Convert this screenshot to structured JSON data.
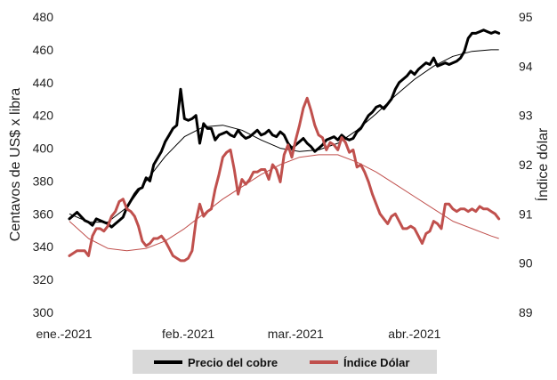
{
  "chart_data": {
    "type": "line",
    "title": "",
    "xlabel": "",
    "ylabel": "Centavos de US$ x libra",
    "y2label": "Índice dólar",
    "ylim": [
      300,
      480
    ],
    "y2lim": [
      89,
      95
    ],
    "x_tick_labels": [
      "ene.-2021",
      "feb.-2021",
      "mar.-2021",
      "abr.-2021"
    ],
    "x_tick_days": [
      0,
      31,
      59,
      90
    ],
    "x_range_days": [
      0,
      113
    ],
    "y_ticks": [
      300,
      320,
      340,
      360,
      380,
      400,
      420,
      440,
      460,
      480
    ],
    "y2_ticks": [
      89,
      90,
      91,
      92,
      93,
      94,
      95
    ],
    "grid": false,
    "legend_position": "bottom",
    "colors": {
      "copper": "#000000",
      "dollar": "#c0504d",
      "legend_bg": "#d9d9d9"
    },
    "series": [
      {
        "name": "Precio del cobre",
        "axis": "left",
        "color": "#000000",
        "x": [
          0,
          2,
          4,
          5,
          6,
          7,
          8,
          9,
          10,
          11,
          12,
          13,
          14,
          15,
          16,
          17,
          18,
          19,
          20,
          21,
          22,
          23,
          24,
          25,
          26,
          27,
          28,
          29,
          30,
          31,
          32,
          33,
          34,
          35,
          36,
          37,
          38,
          39,
          40,
          41,
          42,
          43,
          44,
          45,
          46,
          47,
          48,
          49,
          50,
          51,
          52,
          53,
          54,
          55,
          56,
          57,
          58,
          59,
          60,
          61,
          62,
          63,
          64,
          65,
          66,
          67,
          68,
          69,
          70,
          71,
          72,
          73,
          74,
          75,
          76,
          77,
          78,
          79,
          80,
          81,
          82,
          83,
          84,
          85,
          86,
          87,
          88,
          89,
          90,
          91,
          92,
          93,
          94,
          95,
          96,
          97,
          98,
          99,
          100,
          101,
          102,
          103,
          104,
          105,
          106,
          107,
          108,
          109,
          110,
          111,
          112
        ],
        "values": [
          357,
          361,
          356,
          355,
          353,
          357,
          356,
          355,
          354,
          352,
          354,
          356,
          358,
          364,
          368,
          372,
          375,
          376,
          382,
          380,
          390,
          394,
          398,
          404,
          408,
          412,
          414,
          436,
          418,
          417,
          418,
          420,
          403,
          415,
          412,
          412,
          405,
          408,
          409,
          410,
          408,
          407,
          411,
          408,
          406,
          407,
          409,
          411,
          408,
          409,
          411,
          408,
          407,
          410,
          408,
          403,
          400,
          402,
          404,
          406,
          403,
          401,
          398,
          400,
          402,
          405,
          406,
          407,
          405,
          408,
          406,
          405,
          406,
          410,
          412,
          416,
          420,
          422,
          425,
          426,
          424,
          427,
          430,
          436,
          440,
          442,
          444,
          447,
          445,
          448,
          450,
          452,
          451,
          455,
          450,
          451,
          452,
          451,
          452,
          453,
          455,
          459,
          467,
          470,
          470,
          471,
          472,
          471,
          470,
          471,
          470
        ]
      },
      {
        "name": "Índice Dólar",
        "axis": "right",
        "color": "#c0504d",
        "x": [
          0,
          2,
          4,
          5,
          6,
          7,
          8,
          9,
          10,
          11,
          12,
          13,
          14,
          15,
          16,
          17,
          18,
          19,
          20,
          21,
          22,
          23,
          24,
          25,
          26,
          27,
          28,
          29,
          30,
          31,
          32,
          33,
          34,
          35,
          36,
          37,
          38,
          39,
          40,
          41,
          42,
          43,
          44,
          45,
          46,
          47,
          48,
          49,
          50,
          51,
          52,
          53,
          54,
          55,
          56,
          57,
          58,
          59,
          60,
          61,
          62,
          63,
          64,
          65,
          66,
          67,
          68,
          69,
          70,
          71,
          72,
          73,
          74,
          75,
          76,
          77,
          78,
          79,
          80,
          81,
          82,
          83,
          84,
          85,
          86,
          87,
          88,
          89,
          90,
          91,
          92,
          93,
          94,
          95,
          96,
          97,
          98,
          99,
          100,
          101,
          102,
          103,
          104,
          105,
          106,
          107,
          108,
          109,
          110,
          111,
          112
        ],
        "values": [
          90.15,
          90.25,
          90.25,
          90.15,
          90.55,
          90.7,
          90.7,
          90.65,
          90.75,
          90.95,
          91.05,
          91.25,
          91.3,
          91.1,
          91.05,
          90.95,
          90.75,
          90.45,
          90.35,
          90.4,
          90.5,
          90.5,
          90.55,
          90.45,
          90.3,
          90.15,
          90.1,
          90.05,
          90.05,
          90.1,
          90.25,
          90.85,
          91.2,
          90.95,
          91.05,
          91.1,
          91.5,
          91.8,
          92.15,
          92.25,
          92.3,
          91.9,
          91.4,
          91.7,
          91.6,
          91.7,
          91.85,
          91.85,
          91.9,
          91.9,
          91.7,
          92.0,
          91.9,
          91.65,
          92.2,
          92.4,
          92.15,
          92.5,
          92.8,
          93.15,
          93.35,
          93.1,
          92.8,
          92.6,
          92.55,
          92.3,
          92.45,
          92.4,
          92.3,
          92.55,
          92.45,
          92.25,
          92.3,
          91.95,
          92.0,
          91.85,
          91.65,
          91.4,
          91.2,
          91.0,
          90.9,
          90.8,
          90.95,
          91.0,
          90.85,
          90.7,
          90.7,
          90.75,
          90.7,
          90.55,
          90.4,
          90.6,
          90.65,
          90.85,
          90.8,
          90.7,
          91.2,
          91.2,
          91.1,
          91.05,
          91.1,
          91.1,
          91.05,
          91.1,
          91.05,
          91.15,
          91.1,
          91.1,
          91.05,
          91.0,
          90.9
        ]
      }
    ],
    "trendlines": [
      {
        "series": "Precio del cobre",
        "axis": "left",
        "color": "#000000",
        "x": [
          0,
          5,
          10,
          15,
          20,
          25,
          30,
          35,
          40,
          45,
          50,
          55,
          60,
          65,
          70,
          75,
          80,
          85,
          90,
          95,
          100,
          105,
          110,
          112
        ],
        "values": [
          360,
          355,
          355,
          364,
          380,
          395,
          407,
          413,
          414,
          411,
          405,
          400,
          398,
          399,
          403,
          411,
          421,
          432,
          442,
          450,
          456,
          459,
          460,
          460
        ]
      },
      {
        "series": "Índice Dólar",
        "axis": "right",
        "color": "#c0504d",
        "x": [
          0,
          5,
          10,
          15,
          20,
          25,
          30,
          35,
          40,
          45,
          50,
          55,
          60,
          65,
          70,
          75,
          80,
          85,
          90,
          95,
          100,
          105,
          110,
          112
        ],
        "values": [
          90.85,
          90.5,
          90.3,
          90.25,
          90.3,
          90.45,
          90.7,
          91.0,
          91.3,
          91.55,
          91.8,
          92.0,
          92.15,
          92.2,
          92.2,
          92.05,
          91.85,
          91.6,
          91.35,
          91.1,
          90.85,
          90.7,
          90.55,
          90.5
        ]
      }
    ]
  }
}
